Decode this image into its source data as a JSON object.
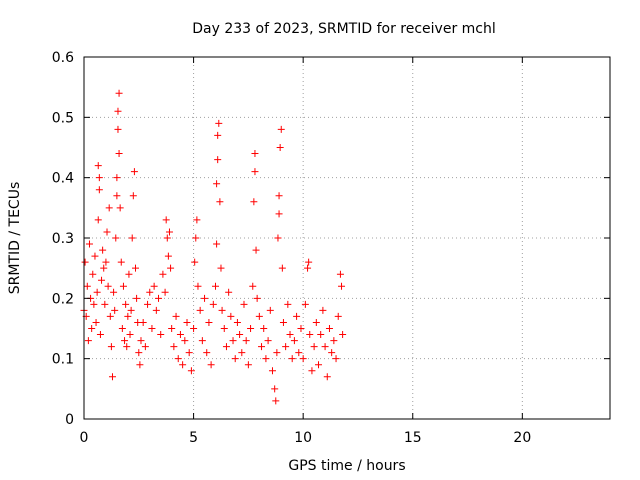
{
  "chart_data": {
    "type": "scatter",
    "title": "Day 233 of 2023, SRMTID for receiver mchl",
    "xlabel": "GPS time / hours",
    "ylabel": "SRMTID / TECUs",
    "xlim": [
      0,
      24
    ],
    "ylim": [
      0,
      0.6
    ],
    "xticks": [
      0,
      5,
      10,
      15,
      20
    ],
    "xtick_labels": [
      "0",
      "5",
      "10",
      "15",
      "20"
    ],
    "yticks": [
      0,
      0.1,
      0.2,
      0.3,
      0.4,
      0.5,
      0.6
    ],
    "ytick_labels": [
      "0",
      "0.1",
      "0.2",
      "0.3",
      "0.4",
      "0.5",
      "0.6"
    ],
    "grid": true,
    "marker": "+",
    "color": "#ff0000",
    "series": [
      {
        "name": "SRMTID",
        "points": [
          [
            0.0,
            0.18
          ],
          [
            0.05,
            0.26
          ],
          [
            0.1,
            0.17
          ],
          [
            0.15,
            0.22
          ],
          [
            0.2,
            0.13
          ],
          [
            0.25,
            0.29
          ],
          [
            0.3,
            0.2
          ],
          [
            0.35,
            0.15
          ],
          [
            0.4,
            0.24
          ],
          [
            0.45,
            0.19
          ],
          [
            0.5,
            0.27
          ],
          [
            0.55,
            0.16
          ],
          [
            0.6,
            0.21
          ],
          [
            0.65,
            0.33
          ],
          [
            0.65,
            0.42
          ],
          [
            0.7,
            0.4
          ],
          [
            0.7,
            0.38
          ],
          [
            0.75,
            0.14
          ],
          [
            0.8,
            0.23
          ],
          [
            0.85,
            0.28
          ],
          [
            0.9,
            0.25
          ],
          [
            0.95,
            0.19
          ],
          [
            1.0,
            0.26
          ],
          [
            1.05,
            0.31
          ],
          [
            1.1,
            0.22
          ],
          [
            1.15,
            0.35
          ],
          [
            1.2,
            0.17
          ],
          [
            1.25,
            0.12
          ],
          [
            1.3,
            0.07
          ],
          [
            1.35,
            0.21
          ],
          [
            1.4,
            0.18
          ],
          [
            1.45,
            0.3
          ],
          [
            1.5,
            0.37
          ],
          [
            1.5,
            0.4
          ],
          [
            1.55,
            0.48
          ],
          [
            1.55,
            0.51
          ],
          [
            1.6,
            0.54
          ],
          [
            1.6,
            0.44
          ],
          [
            1.65,
            0.35
          ],
          [
            1.7,
            0.26
          ],
          [
            1.75,
            0.15
          ],
          [
            1.8,
            0.22
          ],
          [
            1.85,
            0.13
          ],
          [
            1.9,
            0.19
          ],
          [
            1.95,
            0.12
          ],
          [
            2.0,
            0.17
          ],
          [
            2.05,
            0.24
          ],
          [
            2.1,
            0.14
          ],
          [
            2.15,
            0.18
          ],
          [
            2.2,
            0.3
          ],
          [
            2.25,
            0.37
          ],
          [
            2.3,
            0.41
          ],
          [
            2.35,
            0.25
          ],
          [
            2.4,
            0.2
          ],
          [
            2.45,
            0.16
          ],
          [
            2.5,
            0.11
          ],
          [
            2.55,
            0.09
          ],
          [
            2.6,
            0.13
          ],
          [
            2.7,
            0.16
          ],
          [
            2.8,
            0.12
          ],
          [
            2.9,
            0.19
          ],
          [
            3.0,
            0.21
          ],
          [
            3.1,
            0.15
          ],
          [
            3.2,
            0.22
          ],
          [
            3.3,
            0.18
          ],
          [
            3.4,
            0.2
          ],
          [
            3.5,
            0.14
          ],
          [
            3.6,
            0.24
          ],
          [
            3.7,
            0.21
          ],
          [
            3.75,
            0.33
          ],
          [
            3.8,
            0.3
          ],
          [
            3.85,
            0.27
          ],
          [
            3.9,
            0.31
          ],
          [
            3.95,
            0.25
          ],
          [
            4.0,
            0.15
          ],
          [
            4.1,
            0.12
          ],
          [
            4.2,
            0.17
          ],
          [
            4.3,
            0.1
          ],
          [
            4.4,
            0.14
          ],
          [
            4.5,
            0.09
          ],
          [
            4.6,
            0.13
          ],
          [
            4.7,
            0.16
          ],
          [
            4.8,
            0.11
          ],
          [
            4.9,
            0.08
          ],
          [
            5.0,
            0.15
          ],
          [
            5.05,
            0.26
          ],
          [
            5.1,
            0.3
          ],
          [
            5.15,
            0.33
          ],
          [
            5.2,
            0.22
          ],
          [
            5.3,
            0.18
          ],
          [
            5.4,
            0.13
          ],
          [
            5.5,
            0.2
          ],
          [
            5.6,
            0.11
          ],
          [
            5.7,
            0.16
          ],
          [
            5.8,
            0.09
          ],
          [
            5.9,
            0.19
          ],
          [
            6.0,
            0.22
          ],
          [
            6.05,
            0.29
          ],
          [
            6.05,
            0.39
          ],
          [
            6.1,
            0.43
          ],
          [
            6.1,
            0.47
          ],
          [
            6.15,
            0.49
          ],
          [
            6.2,
            0.36
          ],
          [
            6.25,
            0.25
          ],
          [
            6.3,
            0.18
          ],
          [
            6.4,
            0.15
          ],
          [
            6.5,
            0.12
          ],
          [
            6.6,
            0.21
          ],
          [
            6.7,
            0.17
          ],
          [
            6.8,
            0.13
          ],
          [
            6.9,
            0.1
          ],
          [
            7.0,
            0.16
          ],
          [
            7.1,
            0.14
          ],
          [
            7.2,
            0.11
          ],
          [
            7.3,
            0.19
          ],
          [
            7.4,
            0.13
          ],
          [
            7.5,
            0.09
          ],
          [
            7.6,
            0.15
          ],
          [
            7.7,
            0.22
          ],
          [
            7.75,
            0.36
          ],
          [
            7.8,
            0.41
          ],
          [
            7.8,
            0.44
          ],
          [
            7.85,
            0.28
          ],
          [
            7.9,
            0.2
          ],
          [
            8.0,
            0.17
          ],
          [
            8.1,
            0.12
          ],
          [
            8.2,
            0.15
          ],
          [
            8.3,
            0.1
          ],
          [
            8.4,
            0.13
          ],
          [
            8.5,
            0.18
          ],
          [
            8.6,
            0.08
          ],
          [
            8.7,
            0.05
          ],
          [
            8.75,
            0.03
          ],
          [
            8.8,
            0.11
          ],
          [
            8.85,
            0.3
          ],
          [
            8.9,
            0.34
          ],
          [
            8.9,
            0.37
          ],
          [
            8.95,
            0.45
          ],
          [
            9.0,
            0.48
          ],
          [
            9.05,
            0.25
          ],
          [
            9.1,
            0.16
          ],
          [
            9.2,
            0.12
          ],
          [
            9.3,
            0.19
          ],
          [
            9.4,
            0.14
          ],
          [
            9.5,
            0.1
          ],
          [
            9.6,
            0.13
          ],
          [
            9.7,
            0.17
          ],
          [
            9.8,
            0.11
          ],
          [
            9.9,
            0.15
          ],
          [
            10.0,
            0.1
          ],
          [
            10.1,
            0.19
          ],
          [
            10.2,
            0.25
          ],
          [
            10.25,
            0.26
          ],
          [
            10.3,
            0.14
          ],
          [
            10.4,
            0.08
          ],
          [
            10.5,
            0.12
          ],
          [
            10.6,
            0.16
          ],
          [
            10.7,
            0.09
          ],
          [
            10.8,
            0.14
          ],
          [
            10.9,
            0.18
          ],
          [
            11.0,
            0.12
          ],
          [
            11.1,
            0.07
          ],
          [
            11.2,
            0.15
          ],
          [
            11.3,
            0.11
          ],
          [
            11.4,
            0.13
          ],
          [
            11.5,
            0.1
          ],
          [
            11.6,
            0.17
          ],
          [
            11.7,
            0.24
          ],
          [
            11.75,
            0.22
          ],
          [
            11.8,
            0.14
          ]
        ]
      }
    ]
  }
}
